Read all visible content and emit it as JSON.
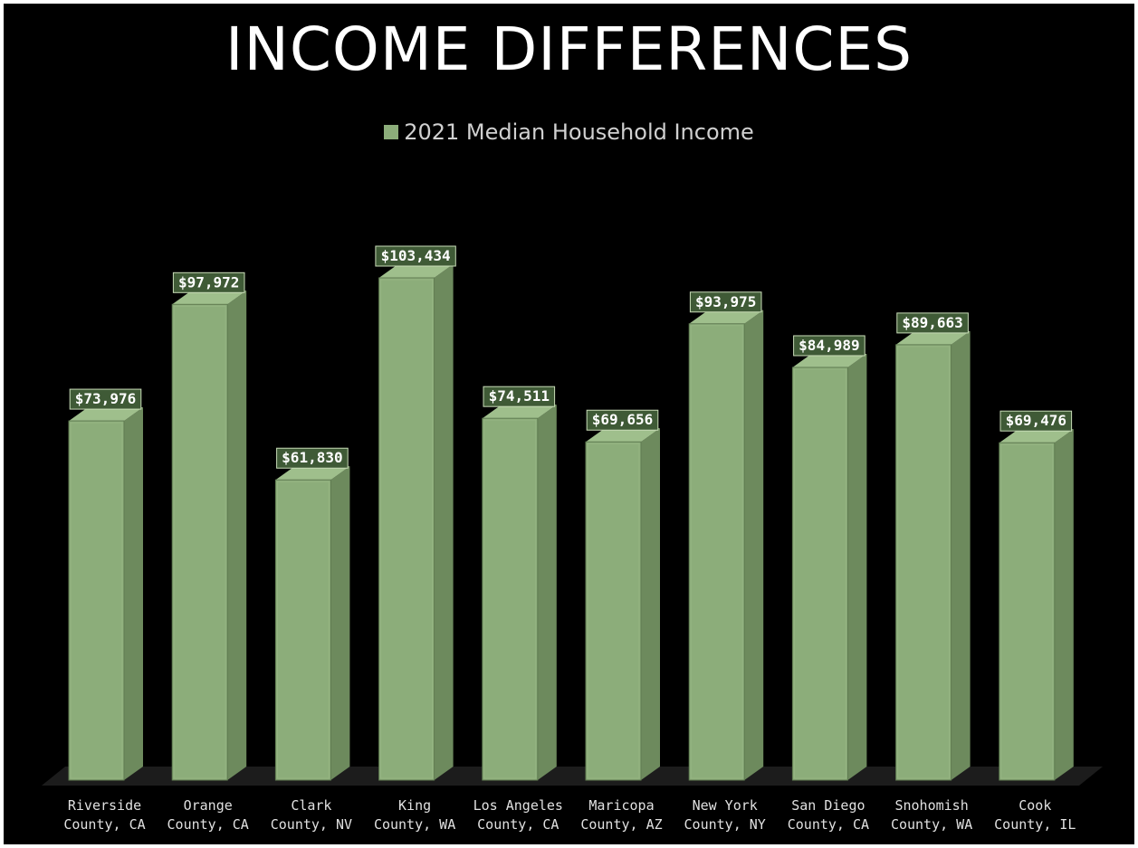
{
  "chart_data": {
    "type": "bar",
    "title": "INCOME DIFFERENCES",
    "legend": [
      "2021 Median Household Income"
    ],
    "legend_position": "top",
    "categories": [
      [
        "Riverside",
        "County, CA"
      ],
      [
        "Orange",
        "County, CA"
      ],
      [
        "Clark",
        "County, NV"
      ],
      [
        "King",
        "County, WA"
      ],
      [
        "Los Angeles",
        "County, CA"
      ],
      [
        "Maricopa",
        "County, AZ"
      ],
      [
        "New York",
        "County, NY"
      ],
      [
        "San Diego",
        "County, CA"
      ],
      [
        "Snohomish",
        "County, WA"
      ],
      [
        "Cook",
        "County, IL"
      ]
    ],
    "series": [
      {
        "name": "2021 Median Household Income",
        "values": [
          73976,
          97972,
          61830,
          103434,
          74511,
          69656,
          93975,
          84989,
          89663,
          69476
        ],
        "labels": [
          "$73,976",
          "$97,972",
          "$61,830",
          "$103,434",
          "$74,511",
          "$69,656",
          "$93,975",
          "$84,989",
          "$89,663",
          "$69,476"
        ]
      }
    ],
    "ylim": [
      0,
      103434
    ],
    "grid": false,
    "colors": {
      "bar_front": "#8cad7a",
      "bar_side": "#6d8a5d",
      "bar_top": "#9fbf8c",
      "floor": "#1c1c1c",
      "label_bg": "#3f5a36",
      "label_border": "#c9dcb8",
      "background": "#000000"
    }
  }
}
